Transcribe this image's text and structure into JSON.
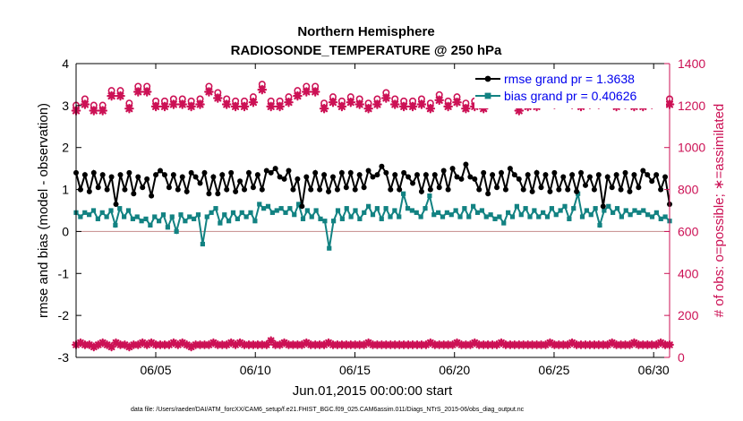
{
  "chart_data": {
    "type": "line",
    "title": "Northern Hemisphere",
    "subtitle": "RADIOSONDE_TEMPERATURE @ 250 hPa",
    "xlabel": "Jun.01,2015 00:00:00 start",
    "ylabel": "rmse and bias (model - observation)",
    "y2label": "# of obs: o=possible; ∗=assimilated",
    "xlim": [
      1,
      30.8
    ],
    "ylim": [
      -3,
      4
    ],
    "y2lim": [
      0,
      1400
    ],
    "xticks": [
      5,
      10,
      15,
      20,
      25,
      30
    ],
    "xtick_labels": [
      "06/05",
      "06/10",
      "06/15",
      "06/20",
      "06/25",
      "06/30"
    ],
    "yticks": [
      -3,
      -2,
      -1,
      0,
      1,
      2,
      3,
      4
    ],
    "ytick_labels": [
      "-3",
      "-2",
      "-1",
      "0",
      "1",
      "2",
      "3",
      "4"
    ],
    "y2ticks": [
      0,
      200,
      400,
      600,
      800,
      1000,
      1200,
      1400
    ],
    "y2tick_labels": [
      "0",
      "200",
      "400",
      "600",
      "800",
      "1000",
      "1200",
      "1400"
    ],
    "legend": {
      "location": "top-right",
      "entries": [
        "rmse grand pr = 1.3638",
        "bias grand pr = 0.40626"
      ]
    },
    "colors": {
      "rmse": "#000000",
      "bias": "#128282",
      "obs": "#cc1155",
      "zero_line": "#cc9999"
    },
    "series": [
      {
        "name": "rmse",
        "axis": "left",
        "values": [
          1.4,
          1.0,
          1.35,
          0.95,
          1.4,
          1.05,
          1.35,
          1.0,
          1.3,
          0.65,
          1.35,
          1.0,
          1.4,
          0.9,
          1.3,
          1.05,
          1.25,
          0.85,
          1.35,
          1.45,
          1.35,
          1.05,
          1.35,
          1.0,
          1.3,
          0.95,
          1.4,
          1.3,
          1.15,
          1.4,
          0.9,
          1.3,
          0.9,
          1.35,
          1.0,
          1.4,
          0.95,
          1.2,
          1.0,
          1.4,
          1.05,
          1.35,
          1.0,
          1.45,
          1.4,
          1.5,
          1.3,
          1.25,
          1.45,
          1.0,
          1.25,
          0.6,
          1.3,
          1.0,
          1.4,
          1.0,
          1.35,
          0.95,
          1.3,
          1.0,
          1.4,
          1.05,
          1.4,
          1.0,
          1.35,
          1.05,
          1.45,
          1.3,
          1.35,
          1.55,
          1.4,
          1.0,
          1.35,
          1.0,
          1.4,
          1.3,
          1.15,
          1.35,
          0.95,
          1.35,
          1.0,
          1.35,
          1.05,
          1.45,
          1.0,
          1.5,
          1.3,
          1.25,
          1.6,
          1.3,
          1.25,
          1.0,
          1.4,
          0.9,
          1.35,
          1.05,
          1.4,
          1.0,
          1.5,
          1.35,
          1.25,
          1.0,
          1.35,
          0.95,
          1.4,
          1.05,
          1.35,
          0.95,
          1.4,
          1.0,
          1.3,
          1.0,
          1.35,
          0.95,
          1.4,
          1.1,
          1.3,
          1.0,
          1.35,
          0.6,
          1.3,
          1.05,
          1.35,
          1.0,
          1.4,
          0.95,
          1.35,
          1.05,
          1.45,
          1.35,
          1.2,
          1.35,
          1.0,
          1.3,
          0.65
        ]
      },
      {
        "name": "bias",
        "axis": "left",
        "values": [
          0.45,
          0.35,
          0.45,
          0.4,
          0.5,
          0.3,
          0.45,
          0.35,
          0.5,
          0.15,
          0.55,
          0.35,
          0.5,
          0.3,
          0.35,
          0.25,
          0.3,
          0.15,
          0.35,
          0.25,
          0.4,
          0.1,
          0.35,
          0.0,
          0.4,
          0.25,
          0.35,
          0.3,
          0.4,
          -0.3,
          0.35,
          0.45,
          0.55,
          0.2,
          0.4,
          0.25,
          0.45,
          0.3,
          0.45,
          0.35,
          0.45,
          0.25,
          0.65,
          0.55,
          0.6,
          0.45,
          0.5,
          0.55,
          0.45,
          0.55,
          0.4,
          0.65,
          0.3,
          0.5,
          0.35,
          0.5,
          0.3,
          0.25,
          -0.4,
          0.25,
          0.5,
          0.3,
          0.55,
          0.35,
          0.5,
          0.3,
          0.45,
          0.6,
          0.4,
          0.55,
          0.3,
          0.55,
          0.35,
          0.5,
          0.35,
          0.9,
          0.55,
          0.5,
          0.45,
          0.35,
          0.55,
          0.85,
          0.4,
          0.45,
          0.35,
          0.45,
          0.4,
          0.5,
          0.35,
          0.55,
          0.35,
          0.6,
          0.45,
          0.5,
          0.35,
          0.4,
          0.3,
          0.35,
          0.2,
          0.45,
          0.35,
          0.6,
          0.4,
          0.55,
          0.35,
          0.5,
          0.35,
          0.45,
          0.35,
          0.55,
          0.4,
          0.5,
          0.6,
          0.3,
          0.55,
          0.9,
          0.35,
          0.5,
          0.4,
          0.55,
          0.15,
          0.5,
          0.6,
          0.45,
          0.55,
          0.35,
          0.5,
          0.4,
          0.5,
          0.45,
          0.5,
          0.4,
          0.35,
          0.45,
          0.3,
          0.35,
          0.25
        ]
      },
      {
        "name": "possible",
        "axis": "right",
        "points_per_group": 2,
        "values": [
          1180,
          1210,
          1180,
          1180,
          1250,
          1250,
          1190,
          1270,
          1270,
          1200,
          1200,
          1210,
          1210,
          1200,
          1210,
          1270,
          1240,
          1210,
          1200,
          1200,
          1220,
          1280,
          1200,
          1200,
          1220,
          1250,
          1270,
          1270,
          1190,
          1220,
          1200,
          1220,
          1210,
          1190,
          1210,
          1240,
          1210,
          1200,
          1200,
          1210,
          1190,
          1230,
          1200,
          1220,
          1190,
          1200,
          1190,
          1220,
          1250,
          1230,
          1180,
          1200,
          1200,
          1250,
          1210,
          1240,
          1210,
          1200,
          1210,
          1210,
          1270,
          1200,
          1210,
          1200,
          1200,
          1210,
          1280,
          1210
        ]
      },
      {
        "name": "assimilated",
        "axis": "right",
        "values": [
          60,
          70,
          60,
          60,
          50,
          60,
          70,
          60,
          50,
          70,
          60,
          60,
          50,
          60,
          60,
          70,
          60,
          70,
          60,
          60,
          60,
          60,
          70,
          60,
          70,
          60,
          50,
          60,
          60,
          60,
          60,
          70,
          60,
          60,
          60,
          70,
          60,
          70,
          60,
          60,
          60,
          60,
          60,
          60,
          80,
          60,
          60,
          70,
          60,
          60,
          60,
          60,
          70,
          60,
          60,
          60,
          60,
          70,
          60,
          60,
          60,
          60,
          60,
          60,
          60,
          60,
          70,
          60,
          60,
          60,
          60,
          60,
          60,
          60,
          60,
          60,
          60,
          60,
          60,
          60,
          70,
          60,
          60,
          60,
          60,
          60,
          70,
          60,
          60,
          60,
          70,
          60,
          60,
          60,
          60,
          60,
          70,
          60,
          60,
          60,
          60,
          60,
          60,
          60,
          60,
          60,
          60,
          70,
          60,
          60,
          60,
          60,
          70,
          60,
          60,
          60,
          60,
          60,
          60,
          60,
          60,
          70,
          60,
          60,
          60,
          60,
          70,
          60,
          60,
          60,
          60,
          60,
          70,
          60,
          60
        ]
      }
    ]
  },
  "footer": {
    "data_file_label": "data file: /Users/raeder/DAI/ATM_forcXX/CAM6_setup/f.e21.FHIST_BGC.f09_025.CAM6assim.011/Diags_NTrS_2015-06/obs_diag_output.nc"
  }
}
